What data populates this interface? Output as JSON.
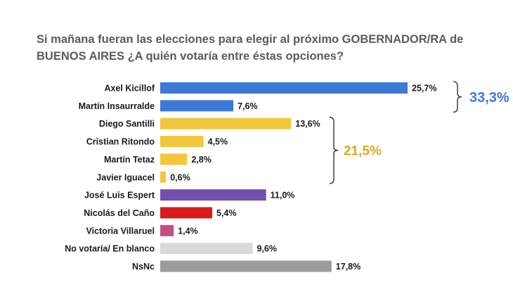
{
  "chart_data": {
    "type": "bar",
    "orientation": "horizontal",
    "title": [
      "Si mañana fueran las elecciones para elegir al próximo GOBERNADOR/RA de",
      "BUENOS AIRES ¿A quién votaría entre éstas opciones?"
    ],
    "categories": [
      "Axel Kicillof",
      "Martín Insaurralde",
      "Diego Santilli",
      "Cristian Ritondo",
      "Martín Tetaz",
      "Javier Iguacel",
      "José Luis Espert",
      "Nicolás del Caño",
      "Victoria Villaruel",
      "No votaría/ En blanco",
      "NsNc"
    ],
    "values": [
      25.7,
      7.6,
      13.6,
      4.5,
      2.8,
      0.6,
      11.0,
      5.4,
      1.4,
      9.6,
      17.8
    ],
    "value_labels": [
      "25,7%",
      "7,6%",
      "13,6%",
      "4,5%",
      "2,8%",
      "0,6%",
      "11,0%",
      "5,4%",
      "1,4%",
      "9,6%",
      "17,8%"
    ],
    "colors": [
      "#3d7ad6",
      "#3d7ad6",
      "#f2c73e",
      "#f2c73e",
      "#f2c73e",
      "#f2c73e",
      "#7251ad",
      "#d71a1a",
      "#bf5080",
      "#d9d9d9",
      "#9b9b9b"
    ],
    "xlim": [
      0,
      25.7
    ],
    "grid": false,
    "groups": [
      {
        "label": "33,3%",
        "color": "#3d7ad6",
        "from": 0,
        "to": 1
      },
      {
        "label": "21,5%",
        "color": "#d9a927",
        "from": 2,
        "to": 5
      }
    ]
  }
}
